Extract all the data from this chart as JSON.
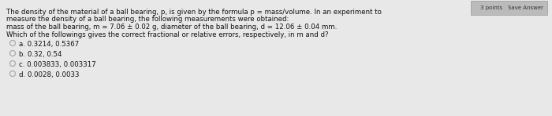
{
  "background_color": "#c8c8c8",
  "panel_color": "#e8e8e8",
  "text_color": "#111111",
  "line1": "The density of the material of a ball bearing, p, is given by the formula p = mass/volume. In an experiment to",
  "line1b": "measure the density of a ball bearing, the following measurements were obtained:",
  "line2": "mass of the ball bearing, m = 7.06 ± 0.02 g, diameter of the ball bearing, d = 12.06 ± 0.04 mm.",
  "line3": "Which of the followings gives the correct fractional or relative errors, respectively, in m and d?",
  "options": [
    "a. 0.3214, 0.5367",
    "b. 0.32, 0.54",
    "c. 0.003833, 0.003317",
    "d. 0.0028, 0.0033"
  ],
  "radio_color": "#aaaaaa",
  "font_size": 6.2,
  "top_right_label1": "3 points",
  "top_right_label2": "Save Answer",
  "button_color": "#bbbbbb"
}
